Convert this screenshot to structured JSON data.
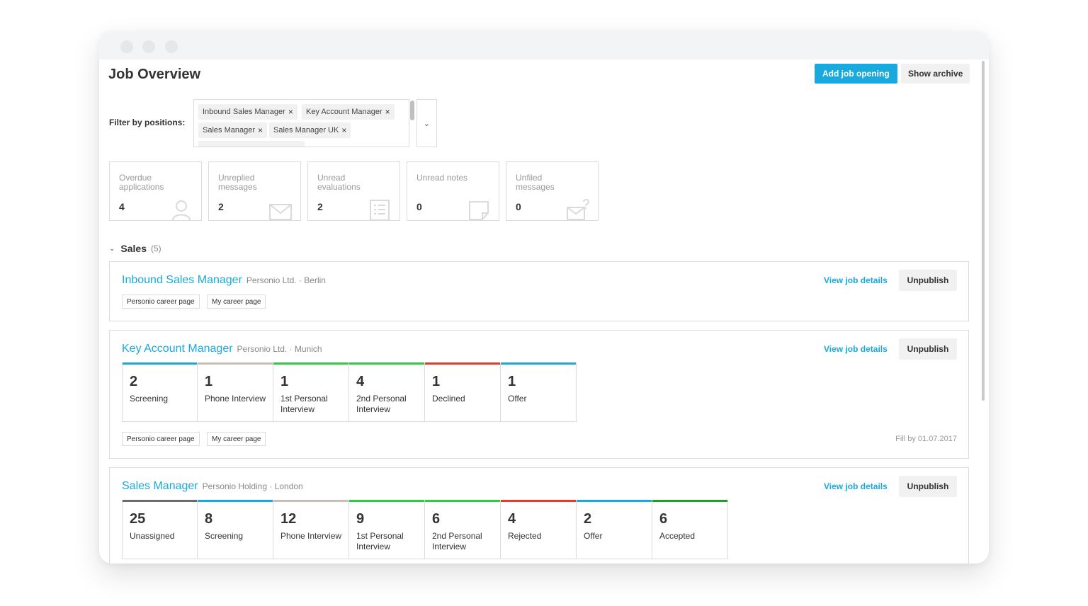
{
  "header": {
    "title": "Job Overview",
    "add_button": "Add job opening",
    "archive_button": "Show archive"
  },
  "filter": {
    "label": "Filter by positions:",
    "tags": [
      "Inbound Sales Manager",
      "Key Account Manager",
      "Sales Manager",
      "Sales Manager UK"
    ],
    "remove_glyph": "×",
    "dropdown_glyph": "⌄"
  },
  "stats": [
    {
      "label": "Overdue applications",
      "value": "4",
      "icon": "user-icon"
    },
    {
      "label": "Unreplied messages",
      "value": "2",
      "icon": "envelope-icon"
    },
    {
      "label": "Unread evaluations",
      "value": "2",
      "icon": "list-icon"
    },
    {
      "label": "Unread notes",
      "value": "0",
      "icon": "note-icon"
    },
    {
      "label": "Unfiled messages",
      "value": "0",
      "icon": "envelope-question-icon"
    }
  ],
  "group": {
    "chevron": "⌄",
    "name": "Sales",
    "count": "(5)"
  },
  "jobs": [
    {
      "title": "Inbound Sales Manager",
      "meta": "Personio Ltd. · Berlin",
      "view_link": "View job details",
      "unpublish": "Unpublish",
      "channels": [
        "Personio career page",
        "My career page"
      ]
    },
    {
      "title": "Key Account Manager",
      "meta": "Personio Ltd. · Munich",
      "view_link": "View job details",
      "unpublish": "Unpublish",
      "channels": [
        "Personio career page",
        "My career page"
      ],
      "fill_by": "Fill by 01.07.2017",
      "stages": [
        {
          "count": "2",
          "label": "Screening",
          "color": "#1aa9dd"
        },
        {
          "count": "1",
          "label": "Phone Interview",
          "color": "#c8beb6"
        },
        {
          "count": "1",
          "label": "1st Personal Interview",
          "color": "#2ecc40"
        },
        {
          "count": "4",
          "label": "2nd Personal Interview",
          "color": "#2ecc40"
        },
        {
          "count": "1",
          "label": "Declined",
          "color": "#e8392f"
        },
        {
          "count": "1",
          "label": "Offer",
          "color": "#1aa9dd"
        }
      ]
    },
    {
      "title": "Sales Manager",
      "meta": "Personio Holding · London",
      "view_link": "View job details",
      "unpublish": "Unpublish",
      "stages": [
        {
          "count": "25",
          "label": "Unassigned",
          "color": "#6b6b6b"
        },
        {
          "count": "8",
          "label": "Screening",
          "color": "#1aa9dd"
        },
        {
          "count": "12",
          "label": "Phone Interview",
          "color": "#c8beb6"
        },
        {
          "count": "9",
          "label": "1st Personal Interview",
          "color": "#2ecc40"
        },
        {
          "count": "6",
          "label": "2nd Personal Interview",
          "color": "#2ecc40"
        },
        {
          "count": "4",
          "label": "Rejected",
          "color": "#e8392f"
        },
        {
          "count": "2",
          "label": "Offer",
          "color": "#1aa9dd"
        },
        {
          "count": "6",
          "label": "Accepted",
          "color": "#1f9d2e"
        }
      ]
    }
  ]
}
